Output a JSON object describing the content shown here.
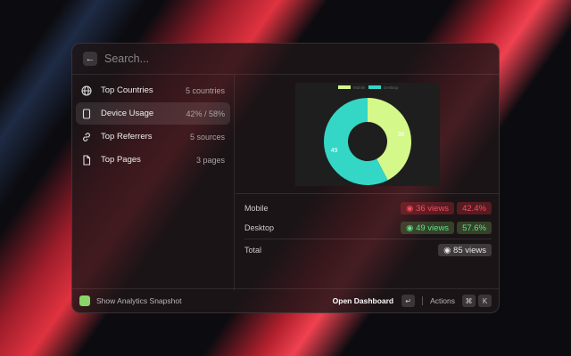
{
  "search": {
    "placeholder": "Search..."
  },
  "items": [
    {
      "label": "Top Countries",
      "accessory": "5 countries",
      "icon": "globe-icon"
    },
    {
      "label": "Device Usage",
      "accessory": "42% / 58%",
      "icon": "device-icon",
      "selected": true
    },
    {
      "label": "Top Referrers",
      "accessory": "5 sources",
      "icon": "link-icon"
    },
    {
      "label": "Top Pages",
      "accessory": "3 pages",
      "icon": "document-icon"
    }
  ],
  "chart_data": {
    "type": "pie",
    "donut": true,
    "categories": [
      "Mobile",
      "Desktop"
    ],
    "values": [
      36,
      49
    ],
    "colors": [
      "#d4f88a",
      "#34d6c6"
    ],
    "legend": "top"
  },
  "details": {
    "mobile": {
      "label": "Mobile",
      "views": "36 views",
      "percent": "42.4%"
    },
    "desktop": {
      "label": "Desktop",
      "views": "49 views",
      "percent": "57.6%"
    },
    "total": {
      "label": "Total",
      "views": "85 views"
    }
  },
  "footer": {
    "title": "Show Analytics Snapshot",
    "primary": "Open Dashboard",
    "primary_key": "↵",
    "actions": "Actions",
    "key1": "⌘",
    "key2": "K"
  }
}
